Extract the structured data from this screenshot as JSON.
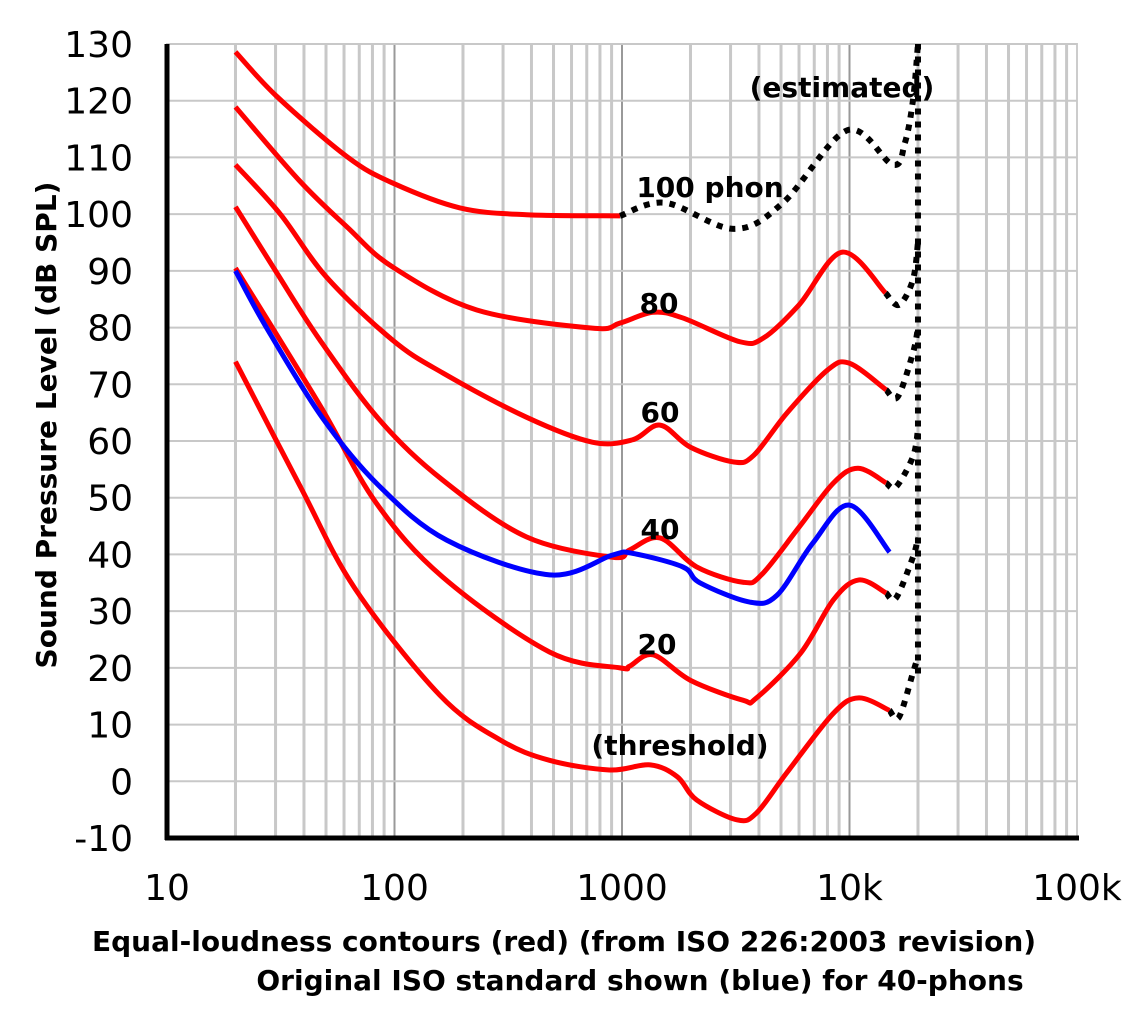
{
  "chart_data": {
    "type": "line",
    "xlabel": "Equal-loudness contours (red) (from ISO 226:2003 revision)",
    "xlabel2": "Original ISO standard shown (blue) for 40-phons",
    "ylabel": "Sound Pressure Level (dB SPL)",
    "xscale": "log",
    "xlim": [
      10,
      100000
    ],
    "ylim": [
      -10,
      130
    ],
    "grid": true,
    "x_tick_labels": [
      "10",
      "100",
      "1000",
      "10k",
      "100k"
    ],
    "x_tick_values": [
      10,
      100,
      1000,
      10000,
      100000
    ],
    "y_ticks": [
      -10,
      0,
      10,
      20,
      30,
      40,
      50,
      60,
      70,
      80,
      90,
      100,
      110,
      120,
      130
    ],
    "colors": {
      "iso2003": "#ff0000",
      "original": "#0000ff",
      "estimated": "#000000"
    },
    "annotations": {
      "p100": "100 phon",
      "p80": "80",
      "p60": "60",
      "p40": "40",
      "p20": "20",
      "threshold": "(threshold)",
      "estimated": "(estimated)"
    },
    "series": [
      {
        "key": "threshold",
        "color": "#ff0000",
        "style": "solid",
        "points": [
          [
            20,
            74
          ],
          [
            38.5,
            52
          ],
          [
            67,
            34
          ],
          [
            158,
            15.2
          ],
          [
            291,
            7.3
          ],
          [
            480,
            3.7
          ],
          [
            880,
            2.0
          ],
          [
            1330,
            2.9
          ],
          [
            1750,
            0.8
          ],
          [
            2130,
            -3.3
          ],
          [
            3200,
            -6.8
          ],
          [
            3900,
            -5.6
          ],
          [
            5300,
            1.5
          ],
          [
            8500,
            12.0
          ],
          [
            11000,
            14.7
          ],
          [
            15000,
            12.5
          ]
        ]
      },
      {
        "key": "20",
        "color": "#ff0000",
        "style": "solid",
        "points": [
          [
            20,
            90.5
          ],
          [
            47,
            66.3
          ],
          [
            83,
            49.1
          ],
          [
            163,
            36.0
          ],
          [
            480,
            22.8
          ],
          [
            980,
            20.0
          ],
          [
            1080,
            20.3
          ],
          [
            1370,
            22.3
          ],
          [
            2000,
            17.8
          ],
          [
            3400,
            14.3
          ],
          [
            3900,
            14.7
          ],
          [
            6100,
            22.6
          ],
          [
            8500,
            32.0
          ],
          [
            11000,
            35.5
          ],
          [
            14500,
            33.2
          ]
        ]
      },
      {
        "key": "40",
        "color": "#ff0000",
        "style": "solid",
        "points": [
          [
            20,
            101.3
          ],
          [
            30,
            90
          ],
          [
            47,
            77.8
          ],
          [
            86,
            63.7
          ],
          [
            163,
            53.1
          ],
          [
            380,
            43.1
          ],
          [
            910,
            39.5
          ],
          [
            1080,
            40.8
          ],
          [
            1470,
            42.9
          ],
          [
            2130,
            37.8
          ],
          [
            3400,
            35.1
          ],
          [
            4100,
            36.4
          ],
          [
            6000,
            44.8
          ],
          [
            8500,
            52.6
          ],
          [
            10900,
            55.2
          ],
          [
            14500,
            52.6
          ]
        ]
      },
      {
        "key": "60",
        "color": "#ff0000",
        "style": "solid",
        "points": [
          [
            20,
            108.7
          ],
          [
            31.5,
            100
          ],
          [
            50,
            89
          ],
          [
            98,
            77.8
          ],
          [
            163,
            72.0
          ],
          [
            380,
            64.2
          ],
          [
            740,
            59.8
          ],
          [
            1110,
            60.2
          ],
          [
            1470,
            62.8
          ],
          [
            2000,
            58.9
          ],
          [
            3100,
            56.3
          ],
          [
            3800,
            57.5
          ],
          [
            5300,
            64.9
          ],
          [
            8000,
            72.5
          ],
          [
            10000,
            73.7
          ],
          [
            14500,
            69.0
          ]
        ]
      },
      {
        "key": "80",
        "color": "#ff0000",
        "style": "solid",
        "points": [
          [
            20,
            118.9
          ],
          [
            38,
            106
          ],
          [
            62,
            97.7
          ],
          [
            98,
            90.7
          ],
          [
            230,
            83.1
          ],
          [
            740,
            79.9
          ],
          [
            980,
            80.8
          ],
          [
            1370,
            82.7
          ],
          [
            1850,
            81.7
          ],
          [
            3300,
            77.5
          ],
          [
            4200,
            78.2
          ],
          [
            6000,
            84
          ],
          [
            9300,
            93.3
          ],
          [
            14400,
            86.1
          ]
        ]
      },
      {
        "key": "100",
        "color": "#ff0000",
        "style": "solid",
        "points": [
          [
            20,
            128.6
          ],
          [
            30.5,
            120.7
          ],
          [
            62,
            110.1
          ],
          [
            98,
            105.5
          ],
          [
            194,
            101.1
          ],
          [
            380,
            99.9
          ],
          [
            980,
            99.7
          ]
        ]
      },
      {
        "key": "original-40",
        "color": "#0000ff",
        "style": "solid",
        "points": [
          [
            20,
            90
          ],
          [
            27,
            80.4
          ],
          [
            48,
            64.2
          ],
          [
            85,
            52.2
          ],
          [
            170,
            42.5
          ],
          [
            480,
            36.4
          ],
          [
            910,
            39.9
          ],
          [
            1110,
            40.2
          ],
          [
            1850,
            37.8
          ],
          [
            2200,
            35.0
          ],
          [
            3640,
            31.6
          ],
          [
            4800,
            32.8
          ],
          [
            6900,
            42.0
          ],
          [
            10000,
            48.7
          ],
          [
            15000,
            40.4
          ]
        ]
      },
      {
        "key": "est-100",
        "color": "#000000",
        "style": "dotted",
        "points": [
          [
            980,
            99.7
          ],
          [
            1550,
            102
          ],
          [
            3100,
            97.4
          ],
          [
            5100,
            102
          ],
          [
            9800,
            114.8
          ],
          [
            15500,
            108.7
          ],
          [
            17500,
            112.5
          ],
          [
            19000,
            120
          ],
          [
            20000,
            130
          ]
        ]
      },
      {
        "key": "est-80",
        "color": "#000000",
        "style": "dotted",
        "points": [
          [
            14400,
            86.1
          ],
          [
            16500,
            84
          ],
          [
            19000,
            88.4
          ],
          [
            20000,
            95
          ]
        ]
      },
      {
        "key": "est-60",
        "color": "#000000",
        "style": "dotted",
        "points": [
          [
            14500,
            69.0
          ],
          [
            16300,
            67.8
          ],
          [
            19000,
            75.5
          ],
          [
            20000,
            80
          ]
        ]
      },
      {
        "key": "est-40",
        "color": "#000000",
        "style": "dotted",
        "points": [
          [
            14500,
            52.6
          ],
          [
            16000,
            51.9
          ],
          [
            19000,
            57.2
          ],
          [
            20000,
            62
          ]
        ]
      },
      {
        "key": "est-20",
        "color": "#000000",
        "style": "dotted",
        "points": [
          [
            14500,
            33.2
          ],
          [
            16000,
            32.3
          ],
          [
            19000,
            39.5
          ],
          [
            20000,
            43
          ]
        ]
      },
      {
        "key": "est-threshold",
        "color": "#000000",
        "style": "dotted",
        "points": [
          [
            15000,
            12.5
          ],
          [
            16500,
            11.3
          ],
          [
            19000,
            19.1
          ],
          [
            20000,
            22
          ]
        ]
      },
      {
        "key": "est-vertical",
        "color": "#000000",
        "style": "dotted",
        "points": [
          [
            20000,
            19
          ],
          [
            20000,
            130
          ]
        ]
      }
    ]
  }
}
